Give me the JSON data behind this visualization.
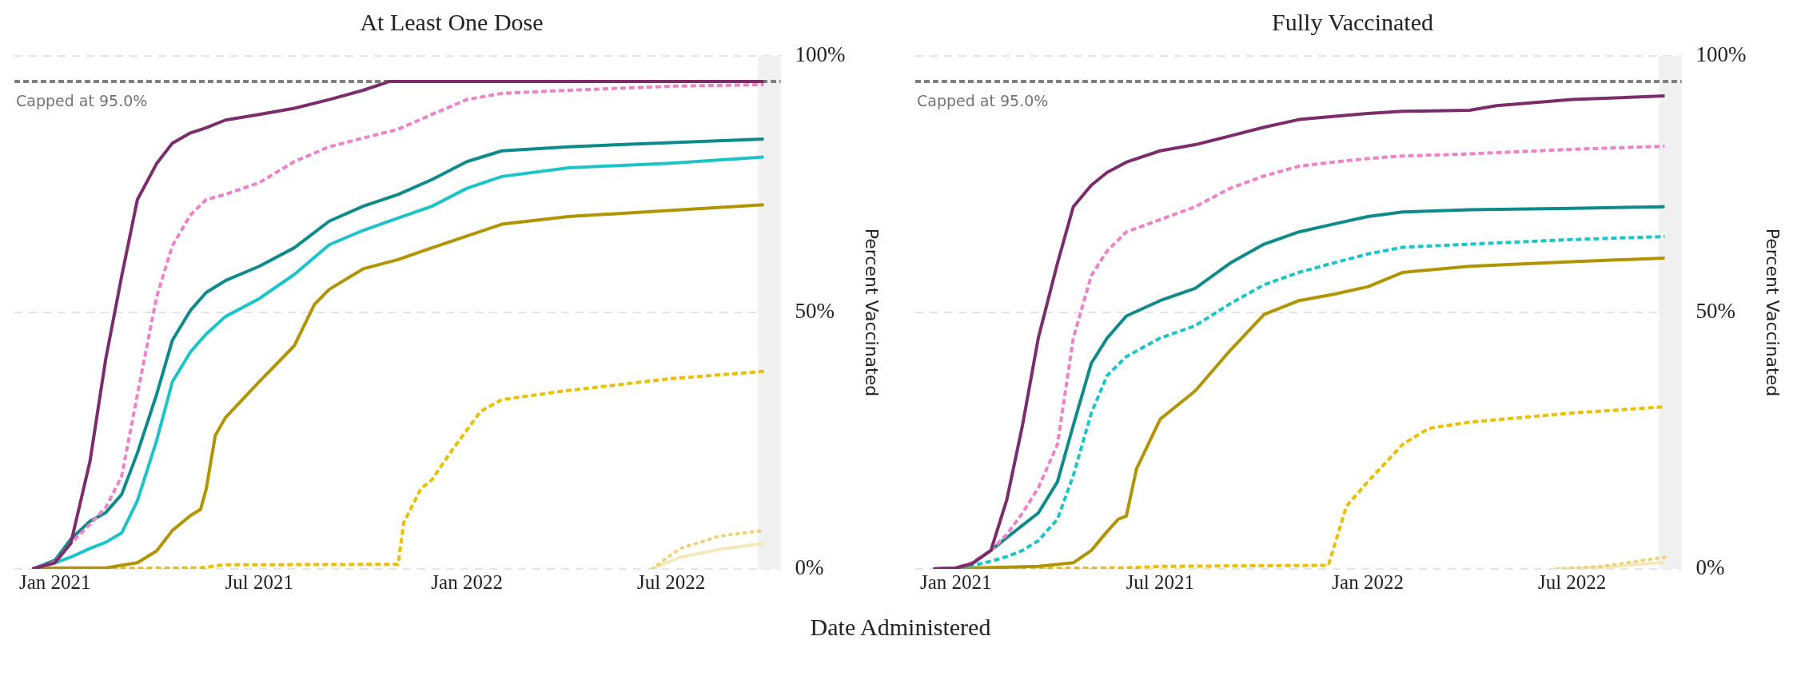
{
  "chart_data": [
    {
      "type": "line",
      "title": "At Least One Dose",
      "xlabel": "Date Administered",
      "ylabel": "Percent Vaccinated",
      "xlim": [
        "2020-11-26",
        "2022-10-06"
      ],
      "xticks": [
        {
          "value": "2021-01-01",
          "label": "Jan 2021"
        },
        {
          "value": "2021-07-01",
          "label": "Jul 2021"
        },
        {
          "value": "2022-01-01",
          "label": "Jan 2022"
        },
        {
          "value": "2022-07-01",
          "label": "Jul 2022"
        }
      ],
      "ylim": [
        0,
        100
      ],
      "yticks": [
        {
          "value": 0,
          "label": "0%"
        },
        {
          "value": 50,
          "label": "50%"
        },
        {
          "value": 100,
          "label": "100%"
        }
      ],
      "grid": "y",
      "ref_lines": [
        {
          "axis": "y",
          "value": 95,
          "label": "Capped at 95.0%",
          "color": "#808080",
          "line_style": "dashed"
        }
      ],
      "bands": [
        {
          "axis": "x",
          "from": "2022-09-16",
          "to": "2022-10-06",
          "color": "#f0f0f0"
        }
      ],
      "series": [
        {
          "color": "#7b2d6b",
          "line_style": "solid",
          "x": [
            "2020-12-12",
            "2021-01-01",
            "2021-01-15",
            "2021-02-01",
            "2021-02-15",
            "2021-03-01",
            "2021-03-15",
            "2021-04-01",
            "2021-04-15",
            "2021-05-01",
            "2021-05-15",
            "2021-06-01",
            "2021-07-01",
            "2021-08-01",
            "2021-09-01",
            "2021-10-01",
            "2021-10-24",
            "2022-09-21"
          ],
          "values": [
            0,
            1.2,
            5,
            21,
            41,
            57,
            72,
            79,
            83,
            85,
            86,
            87.5,
            88.6,
            89.8,
            91.5,
            93.3,
            95,
            95
          ]
        },
        {
          "color": "#ee82c8",
          "line_style": "dashed",
          "x": [
            "2020-12-12",
            "2021-01-01",
            "2021-01-15",
            "2021-02-01",
            "2021-02-15",
            "2021-03-01",
            "2021-03-15",
            "2021-04-01",
            "2021-04-15",
            "2021-05-01",
            "2021-05-15",
            "2021-06-01",
            "2021-07-01",
            "2021-08-01",
            "2021-09-01",
            "2021-10-01",
            "2021-11-01",
            "2021-12-01",
            "2022-01-01",
            "2022-02-01",
            "2022-04-01",
            "2022-07-01",
            "2022-09-21"
          ],
          "values": [
            0,
            1.4,
            5,
            8.7,
            12,
            18,
            34,
            53,
            63,
            69,
            72,
            73,
            75.3,
            79.4,
            82.3,
            84,
            85.7,
            88.6,
            91.5,
            92.7,
            93.3,
            94.1,
            94.4
          ]
        },
        {
          "color": "#0e8a8a",
          "line_style": "solid",
          "x": [
            "2020-12-12",
            "2021-01-01",
            "2021-01-15",
            "2021-02-01",
            "2021-02-15",
            "2021-03-01",
            "2021-03-15",
            "2021-04-01",
            "2021-04-15",
            "2021-05-01",
            "2021-05-15",
            "2021-06-01",
            "2021-07-01",
            "2021-08-01",
            "2021-09-01",
            "2021-10-01",
            "2021-11-01",
            "2021-12-01",
            "2022-01-01",
            "2022-02-01",
            "2022-04-01",
            "2022-07-01",
            "2022-09-21"
          ],
          "values": [
            0,
            1.7,
            5.8,
            9.3,
            11,
            14.5,
            22.6,
            34,
            44.6,
            50.4,
            53.9,
            56.2,
            59,
            62.6,
            67.8,
            70.7,
            73,
            75.9,
            79.4,
            81.5,
            82.3,
            83.1,
            83.8
          ]
        },
        {
          "color": "#1cc4c8",
          "line_style": "solid",
          "x": [
            "2020-12-12",
            "2021-01-01",
            "2021-01-15",
            "2021-02-01",
            "2021-02-15",
            "2021-03-01",
            "2021-03-15",
            "2021-04-01",
            "2021-04-15",
            "2021-05-01",
            "2021-05-15",
            "2021-06-01",
            "2021-07-01",
            "2021-08-01",
            "2021-09-01",
            "2021-10-01",
            "2021-11-01",
            "2021-12-01",
            "2022-01-01",
            "2022-02-01",
            "2022-04-01",
            "2022-07-01",
            "2022-09-21"
          ],
          "values": [
            0,
            1.2,
            2.3,
            4,
            5.2,
            7,
            13.3,
            25,
            36.5,
            42.3,
            45.8,
            49.2,
            52.7,
            57.4,
            63.2,
            66,
            68.4,
            70.7,
            74.2,
            76.5,
            78.2,
            79.1,
            80.3
          ]
        },
        {
          "color": "#b09400",
          "line_style": "solid",
          "x": [
            "2020-12-12",
            "2021-01-01",
            "2021-02-15",
            "2021-03-15",
            "2021-04-01",
            "2021-04-15",
            "2021-05-01",
            "2021-05-10",
            "2021-05-15",
            "2021-05-23",
            "2021-06-01",
            "2021-07-01",
            "2021-08-01",
            "2021-08-19",
            "2021-09-01",
            "2021-10-01",
            "2021-11-01",
            "2021-12-01",
            "2022-01-01",
            "2022-02-01",
            "2022-04-01",
            "2022-07-01",
            "2022-09-21"
          ],
          "values": [
            0,
            0.2,
            0.2,
            1.2,
            3.5,
            7.5,
            10.4,
            11.6,
            15.6,
            26,
            29.5,
            36.5,
            43.5,
            51.6,
            54.5,
            58.5,
            60.3,
            62.6,
            64.9,
            67.2,
            68.7,
            69.9,
            71
          ]
        },
        {
          "color": "#e8c000",
          "line_style": "dashed",
          "x": [
            "2020-12-12",
            "2021-05-10",
            "2021-05-30",
            "2021-11-01",
            "2021-11-06",
            "2021-11-21",
            "2021-12-01",
            "2021-12-19",
            "2022-01-13",
            "2022-02-01",
            "2022-04-01",
            "2022-07-01",
            "2022-09-21"
          ],
          "values": [
            0,
            0.2,
            0.8,
            0.9,
            9,
            15.6,
            17.4,
            23.2,
            30.7,
            33,
            34.8,
            37.1,
            38.5
          ]
        },
        {
          "color": "#ecd37a",
          "line_style": "dotted",
          "x": [
            "2022-06-14",
            "2022-07-09",
            "2022-08-13",
            "2022-09-21"
          ],
          "values": [
            0,
            4,
            6.4,
            7.5
          ]
        },
        {
          "color": "#f5e8bc",
          "line_style": "solid",
          "x": [
            "2022-06-14",
            "2022-07-09",
            "2022-08-13",
            "2022-09-21"
          ],
          "values": [
            0,
            2.3,
            3.8,
            5
          ]
        }
      ]
    },
    {
      "type": "line",
      "title": "Fully Vaccinated",
      "ylabel": "Percent Vaccinated",
      "xlim": [
        "2020-11-26",
        "2022-10-06"
      ],
      "xticks": [
        {
          "value": "2021-01-01",
          "label": "Jan 2021"
        },
        {
          "value": "2021-07-01",
          "label": "Jul 2021"
        },
        {
          "value": "2022-01-01",
          "label": "Jan 2022"
        },
        {
          "value": "2022-07-01",
          "label": "Jul 2022"
        }
      ],
      "ylim": [
        0,
        100
      ],
      "yticks": [
        {
          "value": 0,
          "label": "0%"
        },
        {
          "value": 50,
          "label": "50%"
        },
        {
          "value": 100,
          "label": "100%"
        }
      ],
      "grid": "y",
      "ref_lines": [
        {
          "axis": "y",
          "value": 95,
          "label": "Capped at 95.0%",
          "color": "#808080",
          "line_style": "dashed"
        }
      ],
      "bands": [
        {
          "axis": "x",
          "from": "2022-09-16",
          "to": "2022-10-06",
          "color": "#f0f0f0"
        }
      ],
      "series": [
        {
          "color": "#7b2d6b",
          "line_style": "solid",
          "x": [
            "2020-12-12",
            "2021-01-01",
            "2021-01-15",
            "2021-02-01",
            "2021-02-15",
            "2021-03-01",
            "2021-03-15",
            "2021-04-01",
            "2021-04-15",
            "2021-05-01",
            "2021-05-15",
            "2021-06-01",
            "2021-07-01",
            "2021-08-01",
            "2021-09-01",
            "2021-10-01",
            "2021-11-01",
            "2021-12-01",
            "2022-01-01",
            "2022-02-01",
            "2022-04-01",
            "2022-04-25",
            "2022-07-01",
            "2022-09-21"
          ],
          "values": [
            0,
            0.2,
            1,
            3.6,
            13.4,
            28,
            45,
            59.6,
            70.6,
            74.8,
            77.3,
            79.3,
            81.5,
            82.7,
            84.4,
            86.1,
            87.6,
            88.2,
            88.8,
            89.2,
            89.4,
            90.3,
            91.5,
            92.2
          ]
        },
        {
          "color": "#ee82c8",
          "line_style": "dashed",
          "x": [
            "2020-12-12",
            "2021-01-01",
            "2021-01-15",
            "2021-02-01",
            "2021-02-15",
            "2021-03-01",
            "2021-03-15",
            "2021-04-01",
            "2021-04-15",
            "2021-05-01",
            "2021-05-15",
            "2021-06-01",
            "2021-07-01",
            "2021-08-01",
            "2021-09-01",
            "2021-10-01",
            "2021-11-01",
            "2021-12-01",
            "2022-01-01",
            "2022-02-01",
            "2022-04-01",
            "2022-07-01",
            "2022-09-21"
          ],
          "values": [
            0,
            0.2,
            1.2,
            3.6,
            6.7,
            10.9,
            15.8,
            24.3,
            45,
            57.2,
            62,
            65.7,
            68.1,
            70.6,
            74.2,
            76.6,
            78.5,
            79.3,
            80,
            80.5,
            80.9,
            81.8,
            82.4
          ]
        },
        {
          "color": "#0e8a8a",
          "line_style": "solid",
          "x": [
            "2020-12-12",
            "2021-01-01",
            "2021-01-15",
            "2021-02-01",
            "2021-02-15",
            "2021-03-01",
            "2021-03-15",
            "2021-04-01",
            "2021-04-15",
            "2021-05-01",
            "2021-05-15",
            "2021-06-01",
            "2021-07-01",
            "2021-08-01",
            "2021-09-01",
            "2021-10-01",
            "2021-11-01",
            "2021-12-01",
            "2022-01-01",
            "2022-02-01",
            "2022-04-01",
            "2022-07-01",
            "2022-09-21"
          ],
          "values": [
            0,
            0.2,
            1,
            3.6,
            6.1,
            8.5,
            10.9,
            17,
            28,
            40.1,
            45,
            49.3,
            52.3,
            54.7,
            59.6,
            63.3,
            65.7,
            67.2,
            68.7,
            69.6,
            70,
            70.3,
            70.6
          ]
        },
        {
          "color": "#1cc4c8",
          "line_style": "dashed",
          "x": [
            "2020-12-12",
            "2021-01-01",
            "2021-01-15",
            "2021-02-01",
            "2021-02-15",
            "2021-03-01",
            "2021-03-15",
            "2021-04-01",
            "2021-04-15",
            "2021-05-01",
            "2021-05-15",
            "2021-06-01",
            "2021-07-01",
            "2021-08-01",
            "2021-09-01",
            "2021-10-01",
            "2021-11-01",
            "2021-12-01",
            "2022-01-01",
            "2022-02-01",
            "2022-04-01",
            "2022-07-01",
            "2022-09-21"
          ],
          "values": [
            0,
            0.2,
            0.6,
            1.5,
            2.4,
            3.6,
            5.5,
            9.7,
            18.2,
            30.4,
            37.7,
            41.4,
            45,
            47.4,
            51.7,
            55.4,
            57.8,
            59.6,
            61.4,
            62.7,
            63.3,
            64.2,
            64.8
          ]
        },
        {
          "color": "#b09400",
          "line_style": "solid",
          "x": [
            "2020-12-12",
            "2021-01-01",
            "2021-03-15",
            "2021-04-15",
            "2021-05-01",
            "2021-05-15",
            "2021-05-25",
            "2021-06-01",
            "2021-06-10",
            "2021-07-01",
            "2021-08-01",
            "2021-09-01",
            "2021-10-01",
            "2021-11-01",
            "2021-12-01",
            "2022-01-01",
            "2022-02-01",
            "2022-04-01",
            "2022-07-01",
            "2022-09-21"
          ],
          "values": [
            0,
            0.1,
            0.5,
            1.2,
            3.6,
            7.3,
            9.7,
            10.3,
            19.5,
            29.2,
            34.7,
            42.6,
            49.6,
            52.3,
            53.5,
            55,
            57.8,
            59,
            59.9,
            60.6
          ]
        },
        {
          "color": "#e8c000",
          "line_style": "dashed",
          "x": [
            "2020-12-12",
            "2021-06-01",
            "2021-07-01",
            "2021-11-27",
            "2021-12-13",
            "2022-01-01",
            "2022-02-01",
            "2022-02-24",
            "2022-04-01",
            "2022-07-01",
            "2022-09-21"
          ],
          "values": [
            0,
            0.2,
            0.5,
            0.7,
            12.2,
            17,
            24.3,
            27.4,
            28.6,
            30.4,
            31.6
          ]
        },
        {
          "color": "#ecd37a",
          "line_style": "dotted",
          "x": [
            "2022-06-17",
            "2022-07-28",
            "2022-09-21"
          ],
          "values": [
            0,
            0.5,
            2.3
          ]
        },
        {
          "color": "#f5e8bc",
          "line_style": "solid",
          "x": [
            "2022-06-17",
            "2022-07-28",
            "2022-09-21"
          ],
          "values": [
            0,
            0.3,
            1.3
          ]
        }
      ]
    }
  ]
}
